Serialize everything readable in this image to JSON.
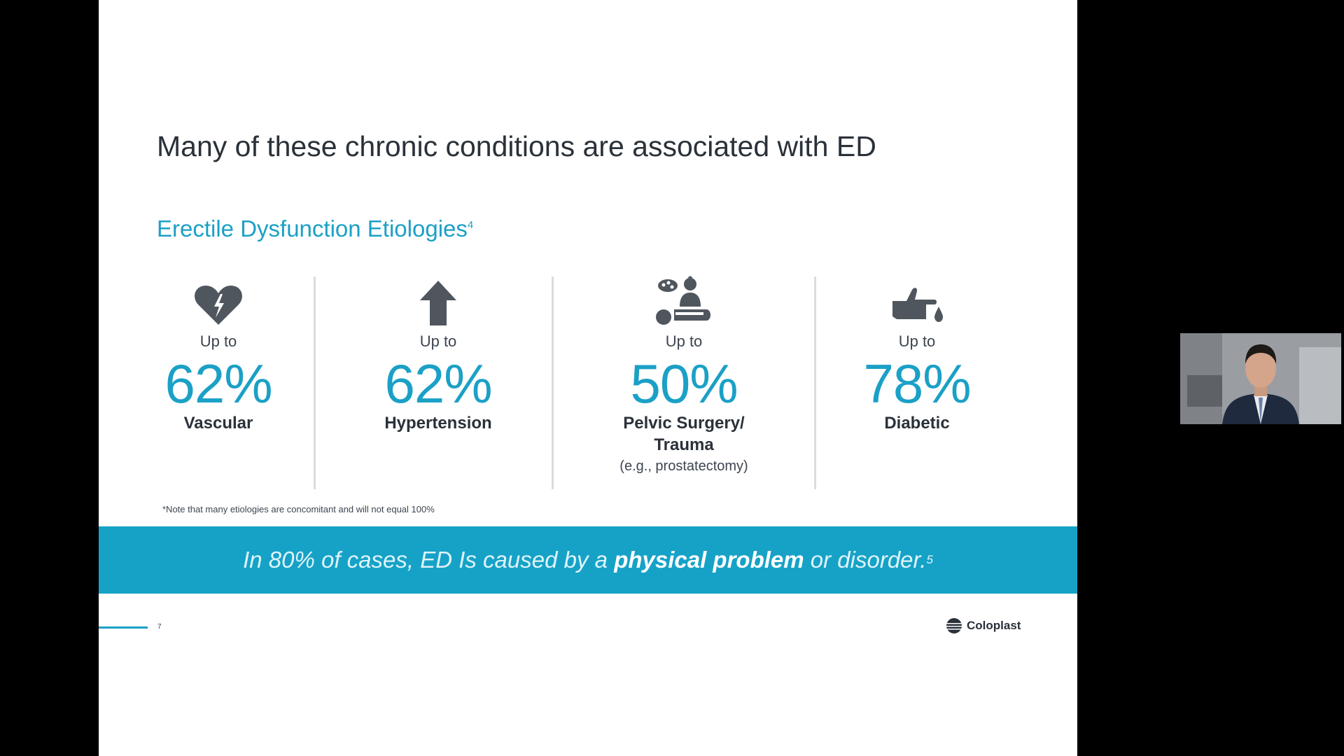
{
  "slide": {
    "title": "Many of these chronic conditions are associated with ED",
    "subtitle": "Erectile Dysfunction Etiologies",
    "subtitle_ref": "4",
    "stats": [
      {
        "icon": "broken-heart-icon",
        "prefix": "Up to",
        "value": "62%",
        "label": "Vascular",
        "sublabel": ""
      },
      {
        "icon": "up-arrow-icon",
        "prefix": "Up to",
        "value": "62%",
        "label": "Hypertension",
        "sublabel": ""
      },
      {
        "icon": "surgery-icon",
        "prefix": "Up to",
        "value": "50%",
        "label": "Pelvic Surgery/ Trauma",
        "sublabel": "(e.g., prostatectomy)"
      },
      {
        "icon": "finger-blood-drop-icon",
        "prefix": "Up to",
        "value": "78%",
        "label": "Diabetic",
        "sublabel": ""
      }
    ],
    "footnote": "*Note that many etiologies are concomitant and will not equal 100%",
    "banner": {
      "before": "In 80% of cases, ED Is caused by a ",
      "bold": "physical problem",
      "after": " or disorder.",
      "ref": "5"
    },
    "page_number": "7",
    "logo_text": "Coloplast"
  },
  "colors": {
    "accent": "#1ba0c6",
    "banner": "#16a2c7",
    "text": "#2a3139",
    "icon": "#4f565d"
  }
}
